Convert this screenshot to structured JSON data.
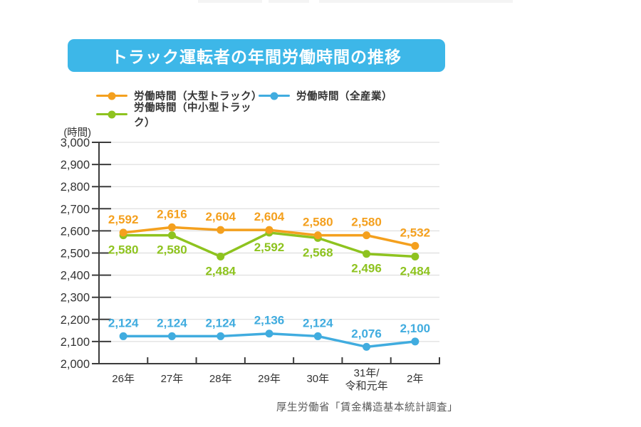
{
  "page": {
    "title": "トラック運転者の年間労働時間の推移",
    "source": "厚生労働省「賃金構造基本統計調査」",
    "colors": {
      "title_bg": "#3DB7E8",
      "title_text": "#FFFFFF",
      "axis": "#3C3C3C",
      "grid": "#D8D8D8",
      "text": "#333333",
      "source_text": "#595959"
    }
  },
  "legend": {
    "items": [
      {
        "id": "large-truck",
        "label": "労働時間（大型トラック）",
        "color": "#F4A01E"
      },
      {
        "id": "all-industries",
        "label": "労働時間（全産業）",
        "color": "#40ACDF"
      },
      {
        "id": "mid-small-truck",
        "label": "労働時間（中小型トラック）",
        "color": "#8EC31F"
      }
    ]
  },
  "chart_data": {
    "type": "line",
    "title": "トラック運転者の年間労働時間の推移",
    "unit_label": "(時間)",
    "categories": [
      "26年",
      "27年",
      "28年",
      "29年",
      "30年",
      "31年/\n令和元年",
      "2年"
    ],
    "series": [
      {
        "id": "large-truck",
        "name": "労働時間（大型トラック）",
        "color": "#F4A01E",
        "label_position": "above",
        "values": [
          2592,
          2616,
          2604,
          2604,
          2580,
          2580,
          2532
        ]
      },
      {
        "id": "mid-small-truck",
        "name": "労働時間（中小型トラック）",
        "color": "#8EC31F",
        "label_position": "below",
        "values": [
          2580,
          2580,
          2484,
          2592,
          2568,
          2496,
          2484
        ]
      },
      {
        "id": "all-industries",
        "name": "労働時間（全産業）",
        "color": "#40ACDF",
        "label_position": "above",
        "values": [
          2124,
          2124,
          2124,
          2136,
          2124,
          2076,
          2100
        ]
      }
    ],
    "ylim": [
      2000,
      3000
    ],
    "ytick_step": 100,
    "grid": true,
    "legend_position": "top",
    "source": "厚生労働省「賃金構造基本統計調査」"
  }
}
